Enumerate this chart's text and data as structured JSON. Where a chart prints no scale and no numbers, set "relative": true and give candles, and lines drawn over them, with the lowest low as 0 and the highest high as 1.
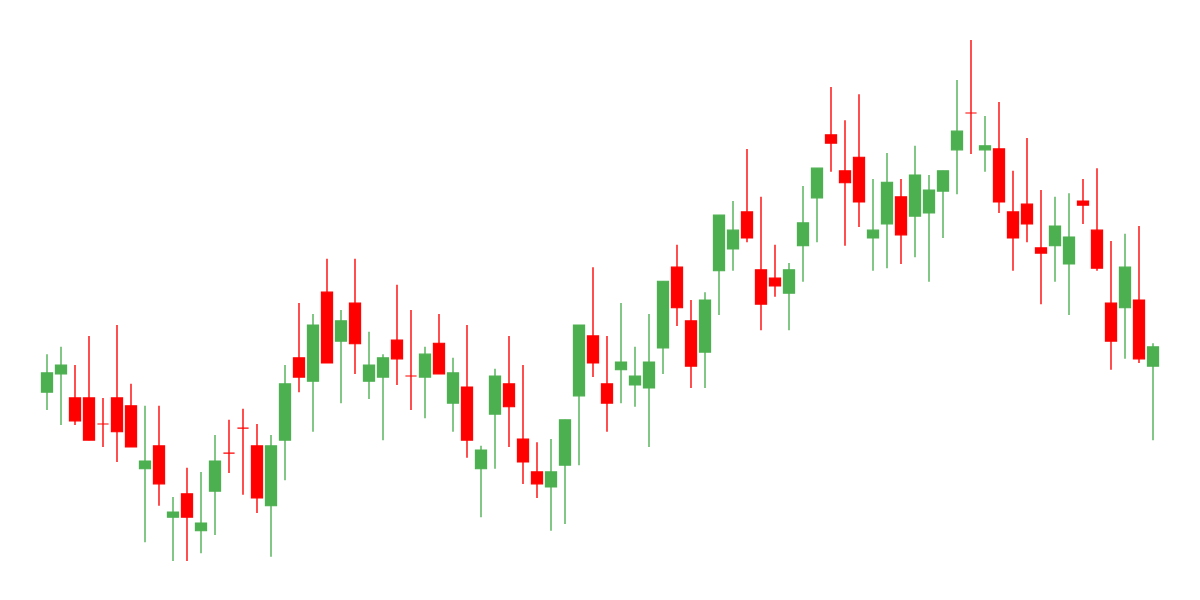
{
  "chart_data": {
    "type": "candlestick",
    "relative": true,
    "categories": [
      null,
      null,
      null,
      null,
      null,
      null,
      null,
      null,
      null,
      null,
      null,
      null,
      null,
      null,
      null,
      null,
      null,
      null,
      null,
      null,
      null,
      null,
      null,
      null,
      null,
      null,
      null,
      null,
      null,
      null,
      null,
      null,
      null,
      null,
      null,
      null,
      null,
      null,
      null,
      null,
      null,
      null,
      null,
      null,
      null,
      null,
      null,
      null,
      null,
      null,
      null,
      null,
      null,
      null,
      null,
      null,
      null,
      null,
      null,
      null,
      null,
      null,
      null,
      null,
      null,
      null,
      null,
      null,
      null,
      null,
      null,
      null,
      null,
      null,
      null,
      null,
      null,
      null,
      null,
      null
    ],
    "ohlc": [
      [
        0.324,
        0.397,
        0.29,
        0.361
      ],
      [
        0.359,
        0.411,
        0.261,
        0.376
      ],
      [
        0.313,
        0.376,
        0.261,
        0.269
      ],
      [
        0.313,
        0.432,
        0.232,
        0.232
      ],
      [
        0.263,
        0.313,
        0.219,
        0.263
      ],
      [
        0.313,
        0.453,
        0.19,
        0.248
      ],
      [
        0.298,
        0.34,
        0.219,
        0.219
      ],
      [
        0.177,
        0.298,
        0.036,
        0.192
      ],
      [
        0.221,
        0.298,
        0.106,
        0.148
      ],
      [
        0.084,
        0.123,
        0.0,
        0.094
      ],
      [
        0.129,
        0.179,
        0.0,
        0.084
      ],
      [
        0.058,
        0.171,
        0.015,
        0.073
      ],
      [
        0.134,
        0.242,
        0.05,
        0.192
      ],
      [
        0.207,
        0.271,
        0.169,
        0.207
      ],
      [
        0.255,
        0.292,
        0.127,
        0.255
      ],
      [
        0.221,
        0.263,
        0.092,
        0.121
      ],
      [
        0.106,
        0.242,
        0.008,
        0.221
      ],
      [
        0.232,
        0.376,
        0.155,
        0.34
      ],
      [
        0.39,
        0.495,
        0.324,
        0.353
      ],
      [
        0.345,
        0.474,
        0.248,
        0.453
      ],
      [
        0.516,
        0.58,
        0.38,
        0.38
      ],
      [
        0.422,
        0.482,
        0.303,
        0.461
      ],
      [
        0.495,
        0.58,
        0.359,
        0.417
      ],
      [
        0.345,
        0.44,
        0.311,
        0.376
      ],
      [
        0.353,
        0.397,
        0.232,
        0.39
      ],
      [
        0.424,
        0.53,
        0.338,
        0.388
      ],
      [
        0.355,
        0.482,
        0.29,
        0.355
      ],
      [
        0.353,
        0.411,
        0.274,
        0.397
      ],
      [
        0.418,
        0.474,
        0.359,
        0.359
      ],
      [
        0.303,
        0.39,
        0.248,
        0.361
      ],
      [
        0.334,
        0.453,
        0.198,
        0.232
      ],
      [
        0.177,
        0.221,
        0.084,
        0.213
      ],
      [
        0.282,
        0.369,
        0.177,
        0.355
      ],
      [
        0.34,
        0.432,
        0.219,
        0.296
      ],
      [
        0.234,
        0.376,
        0.148,
        0.19
      ],
      [
        0.171,
        0.228,
        0.121,
        0.148
      ],
      [
        0.142,
        0.234,
        0.058,
        0.171
      ],
      [
        0.184,
        0.271,
        0.071,
        0.271
      ],
      [
        0.317,
        0.453,
        0.184,
        0.453
      ],
      [
        0.432,
        0.564,
        0.353,
        0.38
      ],
      [
        0.34,
        0.432,
        0.248,
        0.303
      ],
      [
        0.367,
        0.495,
        0.303,
        0.382
      ],
      [
        0.338,
        0.411,
        0.296,
        0.355
      ],
      [
        0.332,
        0.474,
        0.219,
        0.382
      ],
      [
        0.409,
        0.537,
        0.359,
        0.537
      ],
      [
        0.564,
        0.607,
        0.451,
        0.486
      ],
      [
        0.461,
        0.501,
        0.332,
        0.374
      ],
      [
        0.401,
        0.516,
        0.332,
        0.501
      ],
      [
        0.557,
        0.664,
        0.472,
        0.664
      ],
      [
        0.599,
        0.691,
        0.557,
        0.635
      ],
      [
        0.67,
        0.791,
        0.612,
        0.62
      ],
      [
        0.559,
        0.699,
        0.443,
        0.493
      ],
      [
        0.543,
        0.607,
        0.507,
        0.528
      ],
      [
        0.514,
        0.572,
        0.443,
        0.559
      ],
      [
        0.605,
        0.72,
        0.536,
        0.649
      ],
      [
        0.697,
        0.754,
        0.612,
        0.754
      ],
      [
        0.818,
        0.91,
        0.747,
        0.802
      ],
      [
        0.749,
        0.846,
        0.605,
        0.726
      ],
      [
        0.775,
        0.896,
        0.641,
        0.689
      ],
      [
        0.62,
        0.733,
        0.557,
        0.635
      ],
      [
        0.647,
        0.783,
        0.562,
        0.727
      ],
      [
        0.699,
        0.733,
        0.57,
        0.626
      ],
      [
        0.662,
        0.797,
        0.583,
        0.741
      ],
      [
        0.668,
        0.741,
        0.536,
        0.712
      ],
      [
        0.71,
        0.749,
        0.62,
        0.749
      ],
      [
        0.789,
        0.923,
        0.704,
        0.825
      ],
      [
        0.86,
        1.0,
        0.781,
        0.86
      ],
      [
        0.789,
        0.854,
        0.747,
        0.797
      ],
      [
        0.791,
        0.881,
        0.668,
        0.689
      ],
      [
        0.67,
        0.749,
        0.557,
        0.62
      ],
      [
        0.685,
        0.812,
        0.612,
        0.647
      ],
      [
        0.601,
        0.712,
        0.493,
        0.591
      ],
      [
        0.605,
        0.699,
        0.536,
        0.643
      ],
      [
        0.57,
        0.706,
        0.472,
        0.622
      ],
      [
        0.691,
        0.733,
        0.647,
        0.683
      ],
      [
        0.635,
        0.754,
        0.557,
        0.562
      ],
      [
        0.495,
        0.614,
        0.367,
        0.422
      ],
      [
        0.486,
        0.628,
        0.388,
        0.564
      ],
      [
        0.501,
        0.643,
        0.38,
        0.388
      ],
      [
        0.374,
        0.418,
        0.232,
        0.411
      ]
    ],
    "colors": [
      "#4caf50",
      "#4caf50",
      "#ff0000",
      "#ff0000",
      "#ff0000",
      "#ff0000",
      "#ff0000",
      "#4caf50",
      "#ff0000",
      "#4caf50",
      "#ff0000",
      "#4caf50",
      "#4caf50",
      "#ff0000",
      "#ff0000",
      "#ff0000",
      "#4caf50",
      "#4caf50",
      "#ff0000",
      "#4caf50",
      "#ff0000",
      "#4caf50",
      "#ff0000",
      "#4caf50",
      "#4caf50",
      "#ff0000",
      "#ff0000",
      "#4caf50",
      "#ff0000",
      "#4caf50",
      "#ff0000",
      "#4caf50",
      "#4caf50",
      "#ff0000",
      "#ff0000",
      "#ff0000",
      "#4caf50",
      "#4caf50",
      "#4caf50",
      "#ff0000",
      "#ff0000",
      "#4caf50",
      "#4caf50",
      "#4caf50",
      "#4caf50",
      "#ff0000",
      "#ff0000",
      "#4caf50",
      "#4caf50",
      "#4caf50",
      "#ff0000",
      "#ff0000",
      "#ff0000",
      "#4caf50",
      "#4caf50",
      "#4caf50",
      "#ff0000",
      "#ff0000",
      "#ff0000",
      "#4caf50",
      "#4caf50",
      "#ff0000",
      "#4caf50",
      "#4caf50",
      "#4caf50",
      "#4caf50",
      "#ff0000",
      "#4caf50",
      "#ff0000",
      "#ff0000",
      "#ff0000",
      "#ff0000",
      "#4caf50",
      "#4caf50",
      "#ff0000",
      "#ff0000",
      "#ff0000",
      "#4caf50",
      "#ff0000",
      "#4caf50"
    ]
  }
}
